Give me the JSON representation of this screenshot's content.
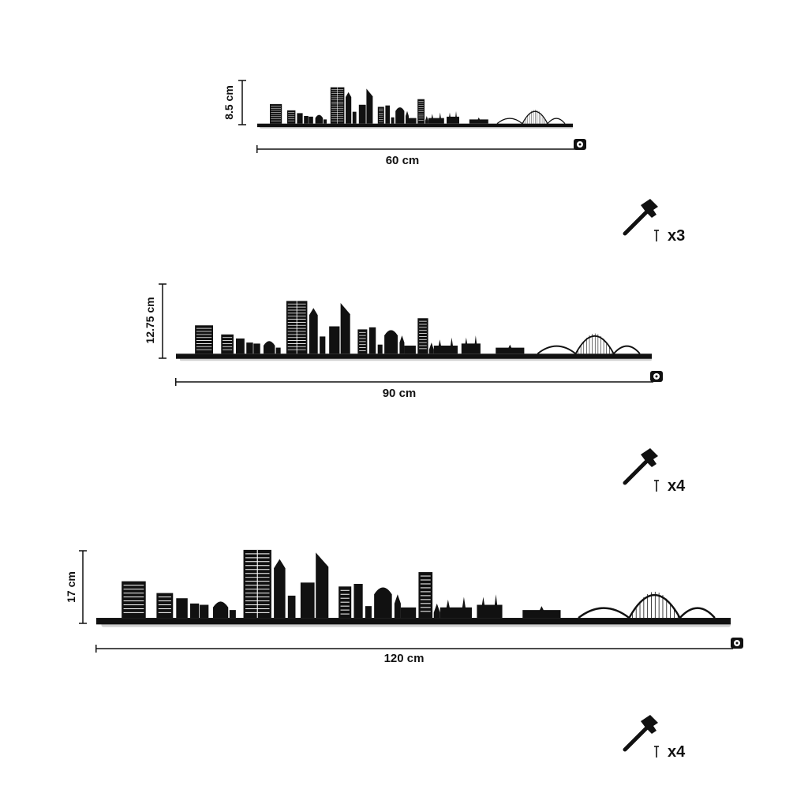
{
  "ink_color": "#111111",
  "shadow_color": "#cfcfcf",
  "icons": {
    "hammer": "hammer-icon",
    "nail": "nail-icon",
    "tape": "tape-measure-icon"
  },
  "variants": [
    {
      "id": "small",
      "width_label": "60 cm",
      "height_label": "8.5 cm"
    },
    {
      "id": "medium",
      "width_label": "90 cm",
      "height_label": "12.75 cm"
    },
    {
      "id": "large",
      "width_label": "120 cm",
      "height_label": "17 cm"
    }
  ],
  "fixings": [
    {
      "quantity_label": "x3"
    },
    {
      "quantity_label": "x4"
    },
    {
      "quantity_label": "x4"
    }
  ]
}
